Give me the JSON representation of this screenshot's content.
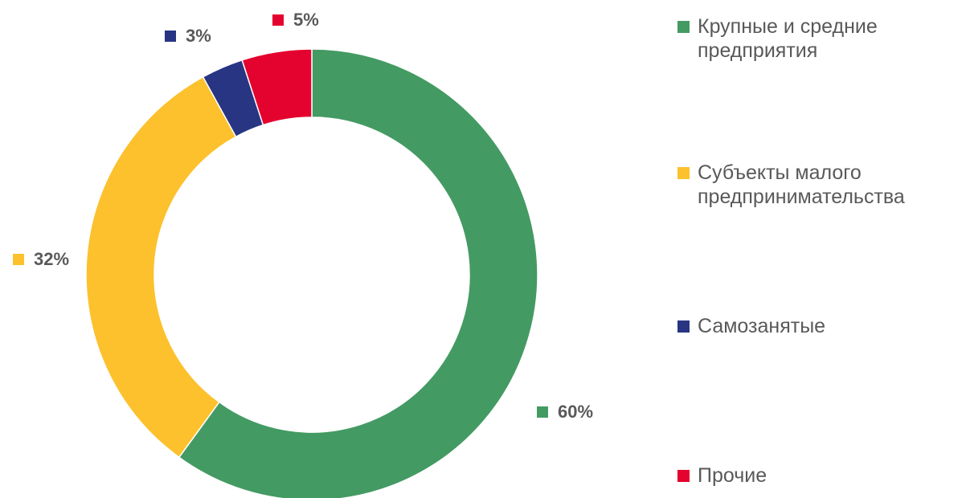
{
  "chart_data": {
    "type": "donut",
    "categories": [
      "Крупные и средние предприятия",
      "Субъекты малого предпринимательства",
      "Самозанятые",
      "Прочие"
    ],
    "values": [
      60,
      32,
      3,
      5
    ],
    "value_labels": [
      "60%",
      "32%",
      "3%",
      "5%"
    ],
    "colors": [
      "#449a63",
      "#fcc12c",
      "#283583",
      "#e4032e"
    ]
  }
}
